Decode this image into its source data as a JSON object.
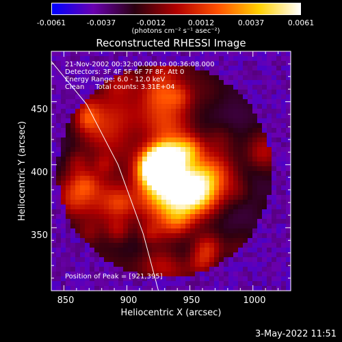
{
  "chart_data": {
    "type": "heatmap",
    "title": "Reconstructed RHESSI Image",
    "xlabel": "Heliocentric X (arcsec)",
    "ylabel": "Heliocentric Y (arcsec)",
    "xlim": [
      840,
      1030
    ],
    "ylim": [
      300,
      490
    ],
    "x_ticks": [
      "850",
      "900",
      "950",
      "1000"
    ],
    "y_ticks": [
      "350",
      "400",
      "450"
    ],
    "colorbar": {
      "ticks": [
        "-0.0061",
        "-0.0037",
        "-0.0012",
        "0.0012",
        "0.0037",
        "0.0061"
      ],
      "units_text": "(photons cm⁻² s⁻¹ asec⁻²)",
      "range": [
        -0.0061,
        0.0061
      ],
      "colormap": [
        "#0000ff",
        "#6a00b0",
        "#2a0010",
        "#b00000",
        "#ff5000",
        "#ffd000",
        "#ffffff"
      ]
    },
    "annotations": [
      "21-Nov-2002 00:32:00.000 to 00:36:08.000",
      "Detectors: 3F 4F 5F 6F 7F 8F, Att 0",
      "Energy Range: 6.0 - 12.0 keV",
      "Clean     Total counts: 3.31E+04"
    ],
    "peak_label": "Position of Peak = [921,395]",
    "peak": [
      921,
      395
    ],
    "limb_line": [
      [
        840,
        482
      ],
      [
        868,
        448
      ],
      [
        893,
        400
      ],
      [
        913,
        345
      ],
      [
        925,
        300
      ]
    ]
  },
  "footer": {
    "timestamp": "3-May-2022 11:51"
  }
}
